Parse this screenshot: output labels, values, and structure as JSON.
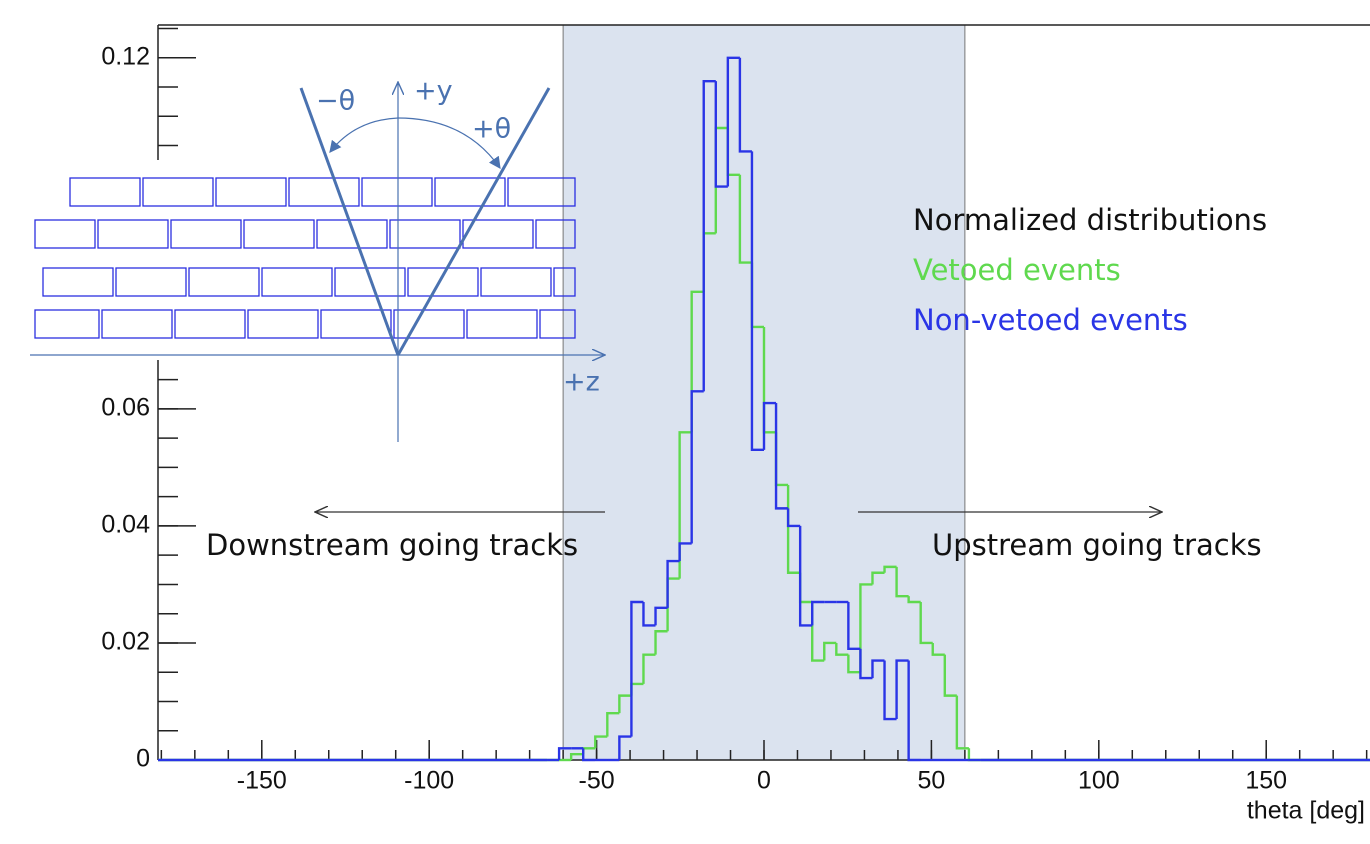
{
  "chart_data": {
    "type": "histogram",
    "legend_title": "Normalized distributions",
    "x_label": "theta [deg]",
    "annotations": {
      "left": "Downstream going tracks",
      "right": "Upstream going tracks"
    },
    "diagram": {
      "minus_theta": "−θ",
      "plus_y": "+y",
      "plus_theta": "+θ",
      "plus_z": "+z"
    },
    "xlim": [
      -181,
      181
    ],
    "ylim": [
      0,
      0.1256
    ],
    "xticks": [
      -150,
      -100,
      -50,
      0,
      50,
      100,
      150
    ],
    "yticks": [
      0,
      0.02,
      0.04,
      0.06,
      0.12
    ],
    "highlight": {
      "range": [
        -60,
        60
      ],
      "color": "#dbe3ef"
    },
    "bins": [
      -64.8,
      -61.2,
      -57.6,
      -54,
      -50.4,
      -46.8,
      -43.2,
      -39.6,
      -36,
      -32.4,
      -28.8,
      -25.2,
      -21.6,
      -18,
      -14.4,
      -10.8,
      -7.2,
      -3.6,
      0,
      3.6,
      7.2,
      10.8,
      14.4,
      18,
      21.6,
      25.2,
      28.8,
      32.4,
      36,
      39.6,
      43.2,
      46.8,
      50.4,
      54,
      57.6,
      61.2,
      64.8
    ],
    "series": [
      {
        "name": "Vetoed events",
        "color": "#5fd94e",
        "values": [
          0,
          0,
          0.001,
          0.002,
          0.004,
          0.008,
          0.011,
          0.013,
          0.018,
          0.022,
          0.031,
          0.056,
          0.08,
          0.09,
          0.108,
          0.1,
          0.085,
          0.074,
          0.056,
          0.047,
          0.032,
          0.027,
          0.017,
          0.02,
          0.018,
          0.015,
          0.03,
          0.032,
          0.033,
          0.028,
          0.027,
          0.02,
          0.018,
          0.011,
          0.002,
          0
        ]
      },
      {
        "name": "Non-vetoed events",
        "color": "#2a35e6",
        "values": [
          0,
          0.002,
          0.002,
          0,
          0,
          0,
          0.004,
          0.027,
          0.023,
          0.026,
          0.034,
          0.037,
          0.063,
          0.116,
          0.098,
          0.12,
          0.104,
          0.053,
          0.061,
          0.043,
          0.04,
          0.023,
          0.027,
          0.027,
          0.027,
          0.019,
          0.014,
          0.017,
          0.007,
          0.017,
          0,
          0,
          0,
          0,
          0,
          0
        ]
      }
    ]
  }
}
